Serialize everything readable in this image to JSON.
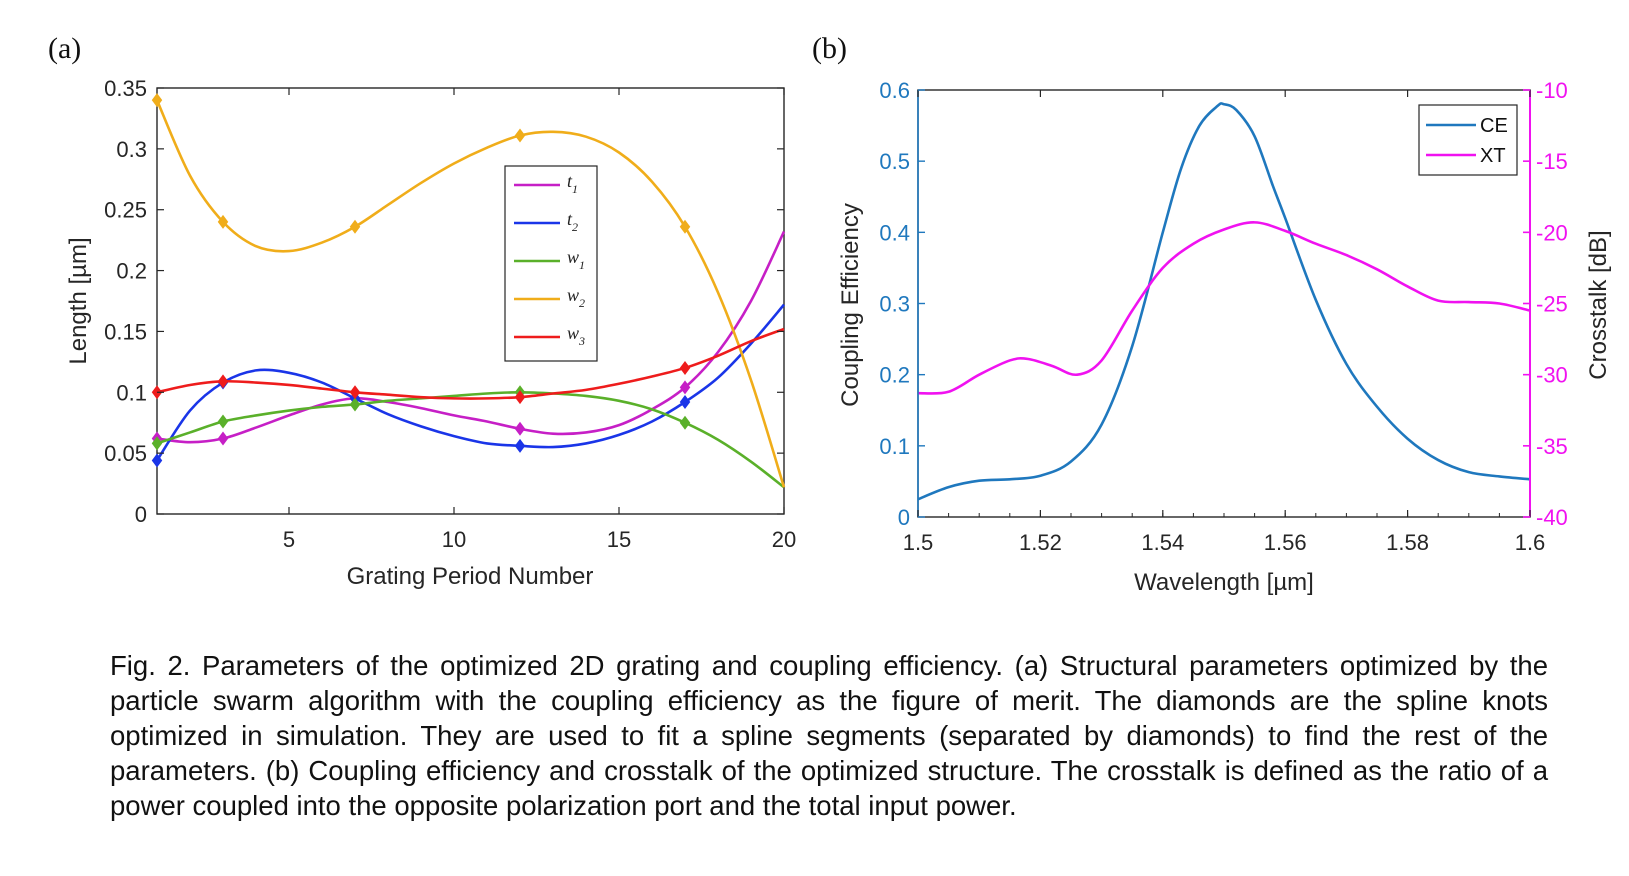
{
  "caption": "Fig. 2. Parameters of the optimized 2D grating and coupling efficiency. (a) Structural parameters optimized by the particle swarm algorithm with the coupling efficiency as the figure of merit. The diamonds are the spline knots optimized in simulation. They are used to fit a spline segments (separated by diamonds) to find the rest of the parameters. (b) Coupling efficiency and crosstalk of the optimized structure. The crosstalk is defined as the ratio of a power coupled into the opposite polarization port and the total input power.",
  "chart_data": [
    {
      "type": "line",
      "panel_label": "(a)",
      "xlabel": "Grating Period Number",
      "ylabel": "Length [µm]",
      "xlim": [
        1,
        20
      ],
      "ylim": [
        0,
        0.35
      ],
      "xticks": [
        5,
        10,
        15,
        20
      ],
      "xtick_labels": [
        "5",
        "10",
        "15",
        "20"
      ],
      "yticks": [
        0,
        0.05,
        0.1,
        0.15,
        0.2,
        0.25,
        0.3,
        0.35
      ],
      "ytick_labels": [
        "0",
        "0.05",
        "0.1",
        "0.15",
        "0.2",
        "0.25",
        "0.3",
        "0.35"
      ],
      "legend_placement": "center",
      "series": [
        {
          "name": "t",
          "sub": "1",
          "color": "#c61fc6",
          "x": [
            1,
            2,
            3,
            4,
            5,
            6,
            7,
            8,
            9,
            10,
            11,
            12,
            13,
            14,
            15,
            16,
            17,
            18,
            19,
            20
          ],
          "y": [
            0.062,
            0.059,
            0.062,
            0.071,
            0.081,
            0.09,
            0.095,
            0.092,
            0.087,
            0.081,
            0.076,
            0.07,
            0.066,
            0.067,
            0.073,
            0.086,
            0.104,
            0.133,
            0.175,
            0.232
          ],
          "knots_x": [
            1,
            3,
            7,
            12,
            17
          ],
          "knots_y": [
            0.062,
            0.062,
            0.095,
            0.07,
            0.104
          ]
        },
        {
          "name": "t",
          "sub": "2",
          "color": "#1a35e8",
          "x": [
            1,
            2,
            3,
            4,
            5,
            6,
            7,
            8,
            9,
            10,
            11,
            12,
            13,
            14,
            15,
            16,
            17,
            18,
            19,
            20
          ],
          "y": [
            0.044,
            0.085,
            0.108,
            0.118,
            0.116,
            0.108,
            0.095,
            0.082,
            0.072,
            0.064,
            0.058,
            0.056,
            0.055,
            0.058,
            0.065,
            0.076,
            0.092,
            0.112,
            0.14,
            0.172
          ],
          "knots_x": [
            1,
            3,
            7,
            12,
            17
          ],
          "knots_y": [
            0.044,
            0.108,
            0.095,
            0.056,
            0.092
          ]
        },
        {
          "name": "w",
          "sub": "1",
          "color": "#5ab02a",
          "x": [
            1,
            2,
            3,
            4,
            5,
            6,
            7,
            8,
            9,
            10,
            11,
            12,
            13,
            14,
            15,
            16,
            17,
            18,
            19,
            20
          ],
          "y": [
            0.058,
            0.067,
            0.076,
            0.081,
            0.085,
            0.088,
            0.09,
            0.093,
            0.095,
            0.097,
            0.099,
            0.1,
            0.099,
            0.097,
            0.093,
            0.086,
            0.075,
            0.061,
            0.043,
            0.022
          ],
          "knots_x": [
            1,
            3,
            7,
            12,
            17
          ],
          "knots_y": [
            0.058,
            0.076,
            0.09,
            0.1,
            0.075
          ]
        },
        {
          "name": "w",
          "sub": "2",
          "color": "#f0ad1a",
          "x": [
            1,
            2,
            3,
            4,
            5,
            6,
            7,
            8,
            9,
            10,
            11,
            12,
            13,
            14,
            15,
            16,
            17,
            18,
            19,
            20
          ],
          "y": [
            0.34,
            0.278,
            0.24,
            0.22,
            0.216,
            0.223,
            0.236,
            0.254,
            0.272,
            0.288,
            0.301,
            0.311,
            0.314,
            0.31,
            0.297,
            0.273,
            0.236,
            0.182,
            0.11,
            0.022
          ],
          "knots_x": [
            1,
            3,
            7,
            12,
            17
          ],
          "knots_y": [
            0.34,
            0.24,
            0.236,
            0.311,
            0.236
          ]
        },
        {
          "name": "w",
          "sub": "3",
          "color": "#ee1c1c",
          "x": [
            1,
            2,
            3,
            4,
            5,
            6,
            7,
            8,
            9,
            10,
            11,
            12,
            13,
            14,
            15,
            16,
            17,
            18,
            19,
            20
          ],
          "y": [
            0.1,
            0.106,
            0.109,
            0.108,
            0.106,
            0.103,
            0.1,
            0.098,
            0.096,
            0.095,
            0.095,
            0.096,
            0.099,
            0.102,
            0.107,
            0.113,
            0.12,
            0.13,
            0.142,
            0.152
          ],
          "knots_x": [
            1,
            3,
            7,
            12,
            17
          ],
          "knots_y": [
            0.1,
            0.109,
            0.1,
            0.096,
            0.12
          ]
        }
      ]
    },
    {
      "type": "line",
      "panel_label": "(b)",
      "xlabel": "Wavelength [µm]",
      "ylabel": "Coupling Efficiency",
      "y2label": "Crosstalk [dB]",
      "xlim": [
        1.5,
        1.6
      ],
      "ylim": [
        0,
        0.6
      ],
      "y2lim": [
        -40,
        -10
      ],
      "xticks": [
        1.5,
        1.52,
        1.54,
        1.56,
        1.58,
        1.6
      ],
      "xtick_labels": [
        "1.5",
        "1.52",
        "1.54",
        "1.56",
        "1.58",
        "1.6"
      ],
      "yticks": [
        0,
        0.1,
        0.2,
        0.3,
        0.4,
        0.5,
        0.6
      ],
      "ytick_labels": [
        "0",
        "0.1",
        "0.2",
        "0.3",
        "0.4",
        "0.5",
        "0.6"
      ],
      "y2ticks": [
        -40,
        -35,
        -30,
        -25,
        -20,
        -15,
        -10
      ],
      "y2tick_labels": [
        "-40",
        "-35",
        "-30",
        "-25",
        "-20",
        "-15",
        "-10"
      ],
      "legend_placement": "top-right",
      "series": [
        {
          "name": "CE",
          "axis": "left",
          "color": "#1f78be",
          "x": [
            1.5,
            1.505,
            1.51,
            1.515,
            1.52,
            1.525,
            1.53,
            1.535,
            1.54,
            1.543,
            1.546,
            1.549,
            1.55,
            1.552,
            1.555,
            1.558,
            1.56,
            1.565,
            1.57,
            1.575,
            1.58,
            1.585,
            1.59,
            1.595,
            1.6
          ],
          "y": [
            0.025,
            0.042,
            0.051,
            0.053,
            0.058,
            0.078,
            0.13,
            0.24,
            0.4,
            0.49,
            0.55,
            0.578,
            0.58,
            0.572,
            0.535,
            0.465,
            0.42,
            0.305,
            0.215,
            0.155,
            0.11,
            0.08,
            0.063,
            0.057,
            0.053
          ]
        },
        {
          "name": "XT",
          "axis": "right",
          "color": "#f012f0",
          "x": [
            1.5,
            1.505,
            1.51,
            1.515,
            1.518,
            1.522,
            1.526,
            1.53,
            1.535,
            1.54,
            1.545,
            1.55,
            1.555,
            1.56,
            1.565,
            1.57,
            1.575,
            1.58,
            1.585,
            1.59,
            1.595,
            1.6
          ],
          "y": [
            -31.3,
            -31.2,
            -30.0,
            -29.0,
            -28.9,
            -29.4,
            -30.0,
            -29.0,
            -25.5,
            -22.5,
            -20.8,
            -19.8,
            -19.3,
            -19.9,
            -20.8,
            -21.6,
            -22.6,
            -23.8,
            -24.8,
            -24.9,
            -25.0,
            -25.5
          ]
        }
      ]
    }
  ]
}
